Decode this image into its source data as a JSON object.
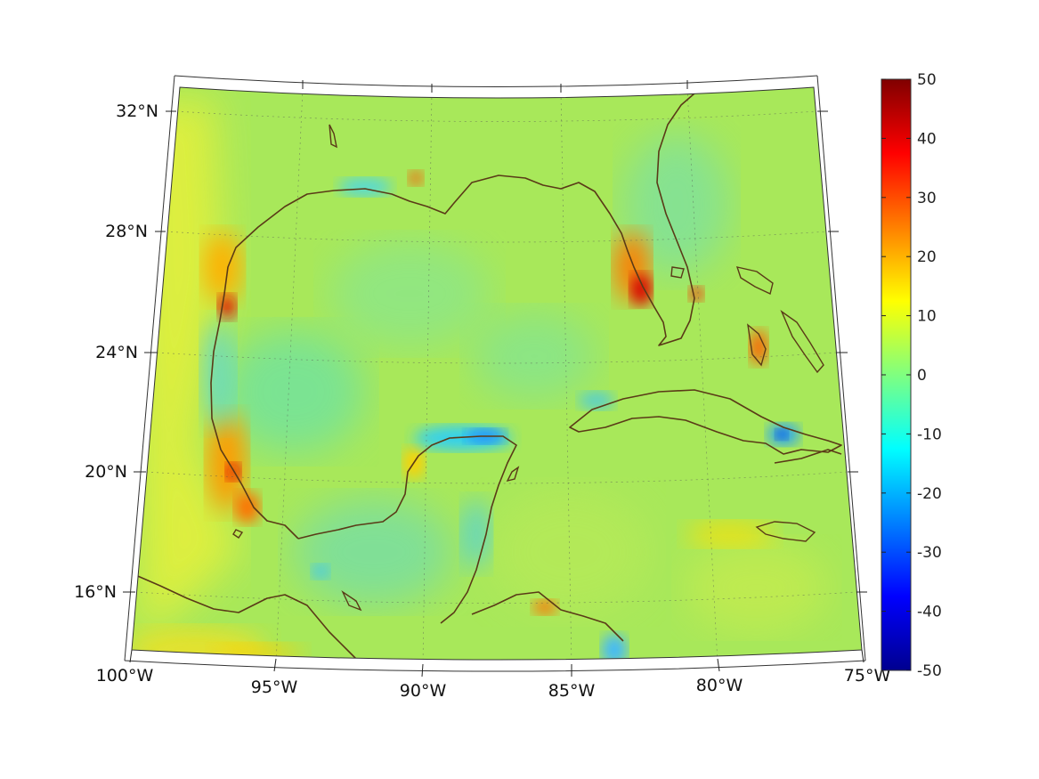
{
  "map": {
    "lat_labels": [
      "32°N",
      "28°N",
      "24°N",
      "20°N",
      "16°N"
    ],
    "lon_labels": [
      "100°W",
      "95°W",
      "90°W",
      "85°W",
      "80°W",
      "75°W"
    ]
  },
  "colorbar": {
    "ticks": [
      "50",
      "40",
      "30",
      "20",
      "10",
      "0",
      "-10",
      "-20",
      "-30",
      "-40",
      "-50"
    ],
    "min": -50,
    "max": 50,
    "colormap": "jet",
    "colors": [
      "#00008f",
      "#0000ff",
      "#00ffff",
      "#ffff00",
      "#ff0000",
      "#800000"
    ]
  },
  "field": {
    "background_color": "#a8e85a",
    "hotspots_warm": [
      "#ffe000",
      "#ff8a00",
      "#e01000"
    ],
    "hotspots_cool": [
      "#40d8f0",
      "#1a8cff",
      "#1040d0"
    ]
  },
  "coastline_color": "#5a3a17"
}
